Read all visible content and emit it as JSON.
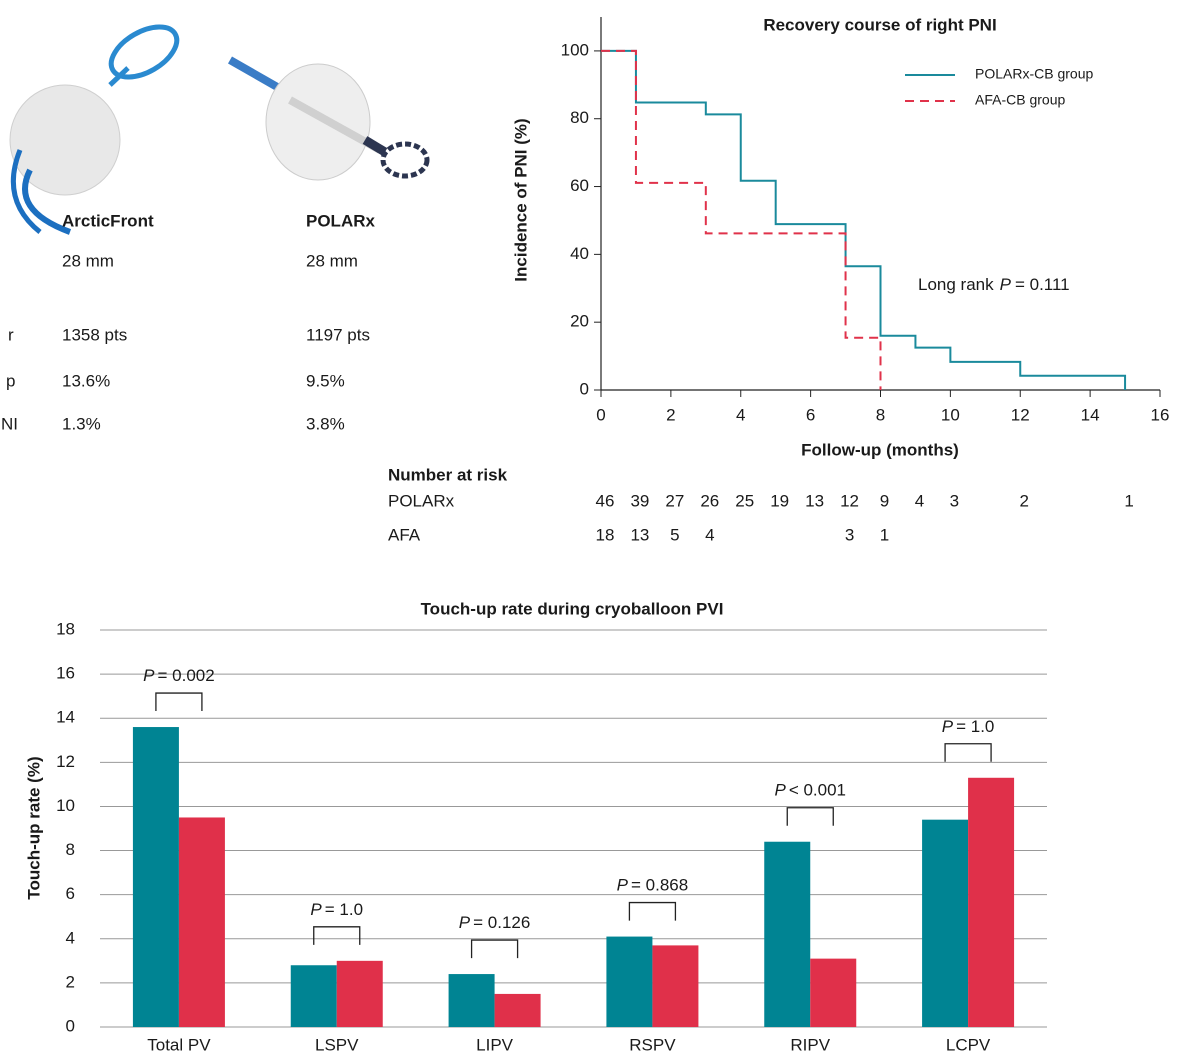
{
  "device_table": {
    "columns": [
      "ArcticFront",
      "POLARx"
    ],
    "rows": [
      {
        "values": [
          "28 mm",
          "28 mm"
        ]
      },
      {
        "label": "r",
        "values": [
          "1358 pts",
          "1197 pts"
        ]
      },
      {
        "label": "p",
        "values": [
          "13.6%",
          "9.5%"
        ]
      },
      {
        "label": "NI",
        "values": [
          "1.3%",
          "3.8%"
        ]
      }
    ]
  },
  "chart_data": [
    {
      "type": "step",
      "title": "Recovery course of right PNI",
      "x_label": "Follow-up (months)",
      "y_label": "Incidence of PNI (%)",
      "xlim": [
        0,
        16
      ],
      "xticks": [
        0,
        2,
        4,
        6,
        8,
        10,
        12,
        14,
        16
      ],
      "ylim": [
        0,
        110
      ],
      "yticks": [
        0,
        20,
        40,
        60,
        80,
        100
      ],
      "legend": "upper right",
      "series": [
        {
          "name": "POLARx-CB group",
          "color": "#1a8a9c",
          "dashed": false,
          "x": [
            0,
            1,
            3,
            4,
            5,
            7,
            8,
            9,
            10,
            12,
            15
          ],
          "values": [
            100,
            84.8,
            81.3,
            61.7,
            48.9,
            36.5,
            16,
            12.5,
            8.3,
            4.2,
            0
          ]
        },
        {
          "name": "AFA-CB group",
          "color": "#e0324a",
          "dashed": true,
          "x": [
            0,
            1,
            3,
            7,
            8
          ],
          "values": [
            100,
            61.1,
            46.2,
            15.4,
            0
          ]
        }
      ],
      "annotation": {
        "text": "Long rank",
        "symbol": "P",
        "value": "= 0.111"
      },
      "risk_table": {
        "title": "Number at risk",
        "rows": [
          {
            "name": "POLARx",
            "x": [
              0,
              1,
              2,
              3,
              4,
              5,
              6,
              7,
              8,
              9,
              10,
              12,
              15
            ],
            "values": [
              46,
              39,
              27,
              26,
              25,
              19,
              13,
              12,
              9,
              4,
              3,
              2,
              1
            ]
          },
          {
            "name": "AFA",
            "x": [
              0,
              1,
              2,
              3,
              7,
              8
            ],
            "values": [
              18,
              13,
              5,
              4,
              3,
              1
            ]
          }
        ]
      }
    },
    {
      "type": "bar",
      "title": "Touch-up rate during cryoballoon PVI",
      "y_label": "Touch-up rate (%)",
      "categories": [
        "Total PV",
        "LSPV",
        "LIPV",
        "RSPV",
        "RIPV",
        "LCPV"
      ],
      "ylim": [
        0,
        18
      ],
      "yticks": [
        0,
        2,
        4,
        6,
        8,
        10,
        12,
        14,
        16,
        18
      ],
      "grid": true,
      "series": [
        {
          "color": "#008493",
          "values": [
            13.6,
            2.8,
            2.4,
            4.1,
            8.4,
            9.4
          ]
        },
        {
          "color": "#e0304a",
          "values": [
            9.5,
            3.0,
            1.5,
            3.7,
            3.1,
            11.3
          ]
        }
      ],
      "annotations": [
        {
          "symbol": "P",
          "text": "= 0.002"
        },
        {
          "symbol": "P",
          "text": "= 1.0"
        },
        {
          "symbol": "P",
          "text": "= 0.126"
        },
        {
          "symbol": "P",
          "text": "= 0.868"
        },
        {
          "symbol": "P",
          "text": "< 0.001"
        },
        {
          "symbol": "P",
          "text": "= 1.0"
        }
      ]
    }
  ]
}
